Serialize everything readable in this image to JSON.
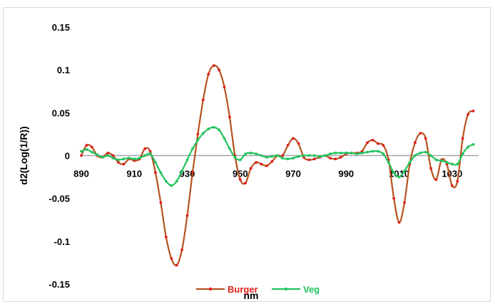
{
  "chart_data": {
    "type": "line",
    "title": "",
    "xlabel": "nm",
    "ylabel": "d2(Log(1/R))",
    "xlim": [
      890,
      1040
    ],
    "ylim": [
      -0.15,
      0.15
    ],
    "x_ticks": [
      "890",
      "910",
      "930",
      "950",
      "970",
      "990",
      "1010",
      "1030"
    ],
    "y_ticks": [
      "0.15",
      "0.1",
      "0.05",
      "0",
      "-0.05",
      "-0.1",
      "-0.15"
    ],
    "grid": false,
    "legend_position": "bottom",
    "series": [
      {
        "name": "Burger",
        "color": "#b5521e",
        "marker_color": "#e0201a",
        "points": [
          [
            890,
            0.0
          ],
          [
            892,
            0.012
          ],
          [
            894,
            0.01
          ],
          [
            896,
            0.0
          ],
          [
            898,
            -0.002
          ],
          [
            900,
            0.003
          ],
          [
            902,
            0.0
          ],
          [
            904,
            -0.008
          ],
          [
            906,
            -0.01
          ],
          [
            908,
            -0.004
          ],
          [
            910,
            -0.006
          ],
          [
            912,
            -0.004
          ],
          [
            914,
            0.008
          ],
          [
            916,
            0.005
          ],
          [
            918,
            -0.02
          ],
          [
            920,
            -0.055
          ],
          [
            922,
            -0.095
          ],
          [
            924,
            -0.12
          ],
          [
            926,
            -0.128
          ],
          [
            928,
            -0.11
          ],
          [
            930,
            -0.07
          ],
          [
            932,
            -0.02
          ],
          [
            934,
            0.025
          ],
          [
            936,
            0.065
          ],
          [
            938,
            0.095
          ],
          [
            940,
            0.105
          ],
          [
            942,
            0.1
          ],
          [
            944,
            0.08
          ],
          [
            946,
            0.045
          ],
          [
            948,
            0.0
          ],
          [
            950,
            -0.028
          ],
          [
            952,
            -0.032
          ],
          [
            954,
            -0.015
          ],
          [
            956,
            -0.008
          ],
          [
            958,
            -0.01
          ],
          [
            960,
            -0.012
          ],
          [
            962,
            -0.007
          ],
          [
            964,
            0.0
          ],
          [
            966,
            0.0
          ],
          [
            968,
            0.012
          ],
          [
            970,
            0.02
          ],
          [
            972,
            0.014
          ],
          [
            974,
            -0.002
          ],
          [
            976,
            -0.005
          ],
          [
            978,
            -0.004
          ],
          [
            980,
            -0.002
          ],
          [
            982,
            0.0
          ],
          [
            984,
            -0.003
          ],
          [
            986,
            -0.004
          ],
          [
            988,
            -0.002
          ],
          [
            990,
            0.002
          ],
          [
            992,
            0.003
          ],
          [
            994,
            0.003
          ],
          [
            996,
            0.005
          ],
          [
            998,
            0.015
          ],
          [
            1000,
            0.018
          ],
          [
            1002,
            0.014
          ],
          [
            1004,
            0.012
          ],
          [
            1006,
            -0.005
          ],
          [
            1008,
            -0.05
          ],
          [
            1010,
            -0.078
          ],
          [
            1012,
            -0.055
          ],
          [
            1014,
            -0.01
          ],
          [
            1016,
            0.015
          ],
          [
            1018,
            0.026
          ],
          [
            1020,
            0.02
          ],
          [
            1022,
            -0.015
          ],
          [
            1024,
            -0.028
          ],
          [
            1026,
            -0.005
          ],
          [
            1028,
            -0.01
          ],
          [
            1030,
            -0.035
          ],
          [
            1032,
            -0.03
          ],
          [
            1034,
            0.02
          ],
          [
            1036,
            0.048
          ],
          [
            1038,
            0.052
          ]
        ]
      },
      {
        "name": "Veg",
        "color": "#22c35e",
        "marker_color": "#22c35e",
        "points": [
          [
            890,
            0.005
          ],
          [
            892,
            0.007
          ],
          [
            894,
            0.004
          ],
          [
            896,
            0.001
          ],
          [
            898,
            -0.002
          ],
          [
            900,
            0.0
          ],
          [
            902,
            -0.003
          ],
          [
            904,
            -0.005
          ],
          [
            906,
            -0.004
          ],
          [
            908,
            -0.003
          ],
          [
            910,
            -0.004
          ],
          [
            912,
            -0.003
          ],
          [
            914,
            0.0
          ],
          [
            916,
            0.002
          ],
          [
            918,
            -0.008
          ],
          [
            920,
            -0.02
          ],
          [
            922,
            -0.03
          ],
          [
            924,
            -0.035
          ],
          [
            926,
            -0.03
          ],
          [
            928,
            -0.018
          ],
          [
            930,
            -0.005
          ],
          [
            932,
            0.008
          ],
          [
            934,
            0.018
          ],
          [
            936,
            0.026
          ],
          [
            938,
            0.031
          ],
          [
            940,
            0.033
          ],
          [
            942,
            0.03
          ],
          [
            944,
            0.02
          ],
          [
            946,
            0.008
          ],
          [
            948,
            -0.002
          ],
          [
            950,
            -0.005
          ],
          [
            952,
            0.002
          ],
          [
            954,
            0.003
          ],
          [
            956,
            0.002
          ],
          [
            958,
            0.0
          ],
          [
            960,
            -0.002
          ],
          [
            962,
            -0.001
          ],
          [
            964,
            0.0
          ],
          [
            966,
            -0.003
          ],
          [
            968,
            -0.004
          ],
          [
            970,
            -0.003
          ],
          [
            972,
            -0.001
          ],
          [
            974,
            0.0
          ],
          [
            976,
            0.0
          ],
          [
            978,
            0.0
          ],
          [
            980,
            -0.001
          ],
          [
            982,
            0.0
          ],
          [
            984,
            0.002
          ],
          [
            986,
            0.003
          ],
          [
            988,
            0.003
          ],
          [
            990,
            0.003
          ],
          [
            992,
            0.003
          ],
          [
            994,
            0.002
          ],
          [
            996,
            0.003
          ],
          [
            998,
            0.004
          ],
          [
            1000,
            0.005
          ],
          [
            1002,
            0.005
          ],
          [
            1004,
            0.002
          ],
          [
            1006,
            -0.008
          ],
          [
            1008,
            -0.02
          ],
          [
            1010,
            -0.025
          ],
          [
            1012,
            -0.018
          ],
          [
            1014,
            -0.008
          ],
          [
            1016,
            0.0
          ],
          [
            1018,
            0.003
          ],
          [
            1020,
            0.004
          ],
          [
            1022,
            0.0
          ],
          [
            1024,
            -0.005
          ],
          [
            1026,
            -0.006
          ],
          [
            1028,
            -0.008
          ],
          [
            1030,
            -0.01
          ],
          [
            1032,
            -0.01
          ],
          [
            1034,
            0.002
          ],
          [
            1036,
            0.01
          ],
          [
            1038,
            0.013
          ]
        ]
      }
    ]
  }
}
